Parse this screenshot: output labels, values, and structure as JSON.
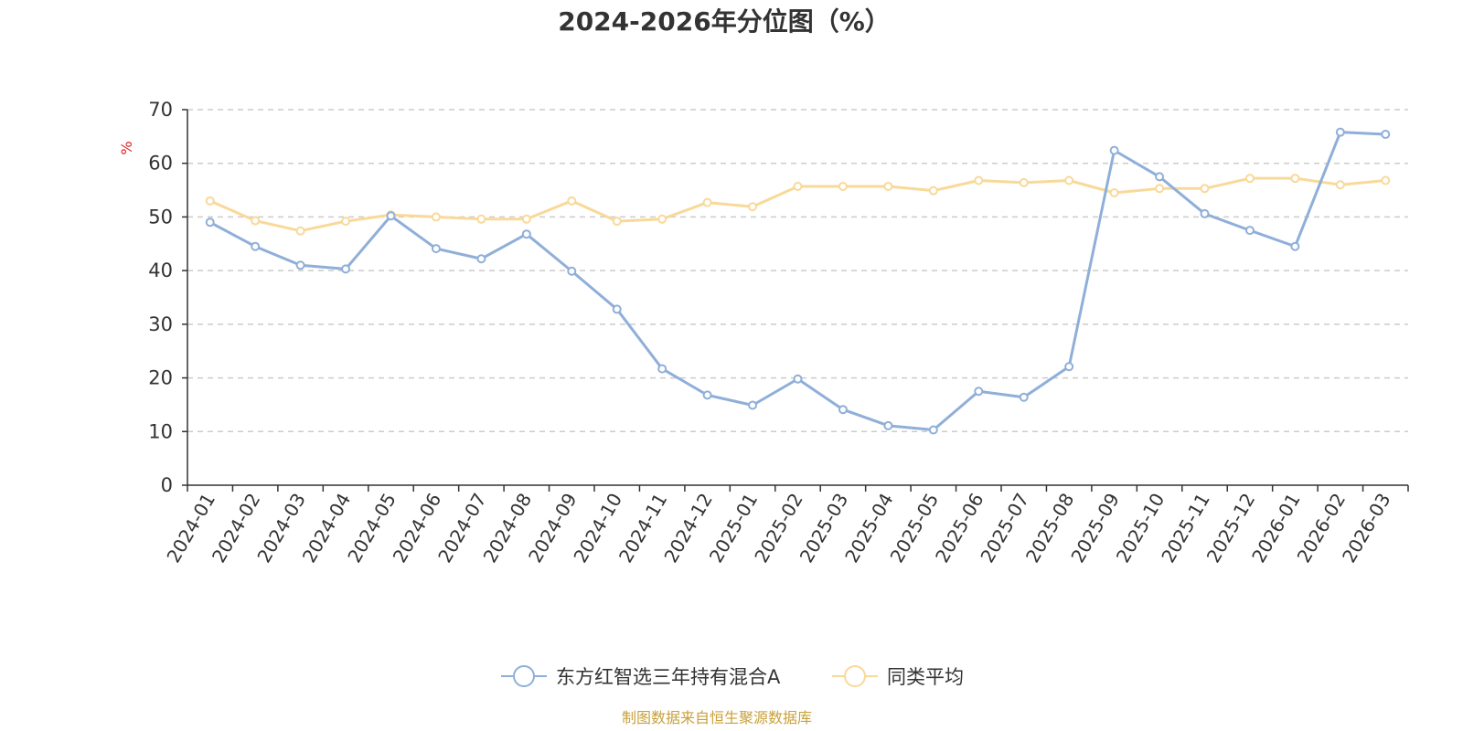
{
  "chart_data": {
    "type": "line",
    "title": "2024-2026年分位图（%）",
    "ylabel": "%",
    "ylim": [
      0,
      70
    ],
    "yticks": [
      0,
      10,
      20,
      30,
      40,
      50,
      60,
      70
    ],
    "grid": true,
    "legend_position": "bottom",
    "categories": [
      "2024-01",
      "2024-02",
      "2024-03",
      "2024-04",
      "2024-05",
      "2024-06",
      "2024-07",
      "2024-08",
      "2024-09",
      "2024-10",
      "2024-11",
      "2024-12",
      "2025-01",
      "2025-02",
      "2025-03",
      "2025-04",
      "2025-05",
      "2025-06",
      "2025-07",
      "2025-08",
      "2025-09",
      "2025-10",
      "2025-11",
      "2025-12",
      "2026-01",
      "2026-02",
      "2026-03"
    ],
    "series": [
      {
        "name": "东方红智选三年持有混合A",
        "color": "#8fafd9",
        "values": [
          49.0,
          44.5,
          41.0,
          40.3,
          50.2,
          44.1,
          42.2,
          46.8,
          39.9,
          32.8,
          21.7,
          16.8,
          14.9,
          19.8,
          14.1,
          11.1,
          10.3,
          17.5,
          16.4,
          22.1,
          62.4,
          57.5,
          50.6,
          47.5,
          44.5,
          65.8,
          65.4
        ]
      },
      {
        "name": "同类平均",
        "color": "#f9d999",
        "values": [
          53.0,
          49.3,
          47.4,
          49.2,
          50.4,
          50.0,
          49.6,
          49.6,
          53.0,
          49.2,
          49.6,
          52.7,
          51.9,
          55.7,
          55.7,
          55.7,
          54.9,
          56.8,
          56.4,
          56.8,
          54.5,
          55.3,
          55.3,
          57.2,
          57.2,
          56.0,
          56.8
        ]
      }
    ]
  },
  "source_note": "制图数据来自恒生聚源数据库"
}
